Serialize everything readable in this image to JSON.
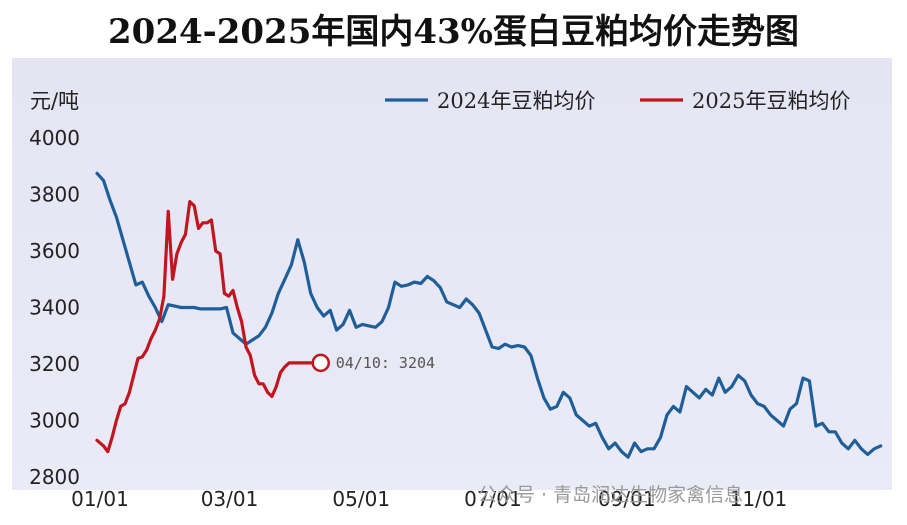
{
  "title": "2024-2025年国内43%蛋白豆粕均价走势图",
  "watermark": "公众号 · 青岛润达生物家禽信息",
  "chart_data": {
    "type": "line",
    "title": "2024-2025年国内43%蛋白豆粕均价走势图",
    "ylabel": "元/吨",
    "xlabel": "",
    "ylim": [
      2800,
      4000
    ],
    "yticks": [
      2800,
      3000,
      3200,
      3400,
      3600,
      3800,
      4000
    ],
    "xticks": [
      {
        "label": "01/01",
        "day": 0
      },
      {
        "label": "03/01",
        "day": 60
      },
      {
        "label": "05/01",
        "day": 121
      },
      {
        "label": "07/01",
        "day": 182
      },
      {
        "label": "09/01",
        "day": 244
      },
      {
        "label": "11/01",
        "day": 305
      }
    ],
    "xlim_days": [
      0,
      365
    ],
    "legend_position": "top-right",
    "grid": false,
    "series": [
      {
        "name": "2024年豆粕均价",
        "color": "#1f5f99",
        "x": [
          0,
          3,
          6,
          9,
          12,
          15,
          18,
          21,
          24,
          27,
          30,
          33,
          36,
          39,
          42,
          45,
          48,
          51,
          54,
          57,
          60,
          63,
          66,
          69,
          72,
          75,
          78,
          81,
          84,
          87,
          90,
          93,
          96,
          99,
          102,
          105,
          108,
          111,
          114,
          117,
          120,
          123,
          126,
          129,
          132,
          135,
          138,
          141,
          144,
          147,
          150,
          153,
          156,
          159,
          162,
          165,
          168,
          171,
          174,
          177,
          180,
          183,
          186,
          189,
          192,
          195,
          198,
          201,
          204,
          207,
          210,
          213,
          216,
          219,
          222,
          225,
          228,
          231,
          234,
          237,
          240,
          243,
          246,
          249,
          252,
          255,
          258,
          261,
          264,
          267,
          270,
          273,
          276,
          279,
          282,
          285,
          288,
          291,
          294,
          297,
          300,
          303,
          306,
          309,
          312,
          315,
          318,
          321,
          324,
          327,
          330,
          333,
          336,
          339,
          342,
          345,
          348,
          351,
          354,
          357,
          360,
          363
        ],
        "y": [
          3875,
          3850,
          3780,
          3720,
          3640,
          3560,
          3480,
          3490,
          3440,
          3400,
          3350,
          3410,
          3405,
          3400,
          3400,
          3400,
          3395,
          3395,
          3395,
          3395,
          3400,
          3310,
          3290,
          3270,
          3285,
          3300,
          3330,
          3380,
          3450,
          3500,
          3550,
          3640,
          3560,
          3450,
          3400,
          3370,
          3390,
          3320,
          3340,
          3390,
          3330,
          3340,
          3335,
          3330,
          3350,
          3400,
          3490,
          3475,
          3480,
          3490,
          3485,
          3510,
          3495,
          3470,
          3420,
          3410,
          3400,
          3430,
          3410,
          3380,
          3320,
          3260,
          3255,
          3270,
          3260,
          3265,
          3260,
          3230,
          3150,
          3080,
          3040,
          3050,
          3100,
          3080,
          3020,
          3000,
          2980,
          2990,
          2940,
          2900,
          2920,
          2890,
          2870,
          2920,
          2890,
          2900,
          2900,
          2940,
          3020,
          3050,
          3030,
          3120,
          3100,
          3080,
          3110,
          3090,
          3150,
          3100,
          3120,
          3160,
          3140,
          3090,
          3060,
          3050,
          3020,
          3000,
          2980,
          3040,
          3060,
          3150,
          3140,
          2980,
          2990,
          2960,
          2960,
          2920,
          2900,
          2930,
          2900,
          2880,
          2900,
          2910
        ]
      },
      {
        "name": "2025年豆粕均价",
        "color": "#c0161f",
        "x": [
          0,
          3,
          5,
          7,
          9,
          11,
          13,
          15,
          17,
          19,
          21,
          23,
          25,
          27,
          29,
          31,
          33,
          35,
          37,
          39,
          41,
          43,
          45,
          47,
          49,
          51,
          53,
          55,
          57,
          59,
          61,
          63,
          65,
          67,
          69,
          71,
          73,
          75,
          77,
          79,
          81,
          83,
          85,
          87,
          89,
          91,
          93,
          95,
          97,
          99
        ],
        "y": [
          2930,
          2910,
          2890,
          2940,
          3000,
          3050,
          3060,
          3100,
          3160,
          3220,
          3225,
          3250,
          3290,
          3320,
          3360,
          3440,
          3740,
          3500,
          3590,
          3630,
          3660,
          3775,
          3760,
          3680,
          3700,
          3700,
          3710,
          3600,
          3590,
          3450,
          3440,
          3460,
          3400,
          3350,
          3260,
          3230,
          3160,
          3130,
          3130,
          3100,
          3085,
          3120,
          3170,
          3190,
          3204,
          3204,
          3204,
          3204,
          3204,
          3204
        ]
      }
    ],
    "annotations": [
      {
        "text": "04/10: 3204",
        "x_day": 99,
        "y": 3204,
        "series": "2025年豆粕均价"
      }
    ]
  }
}
